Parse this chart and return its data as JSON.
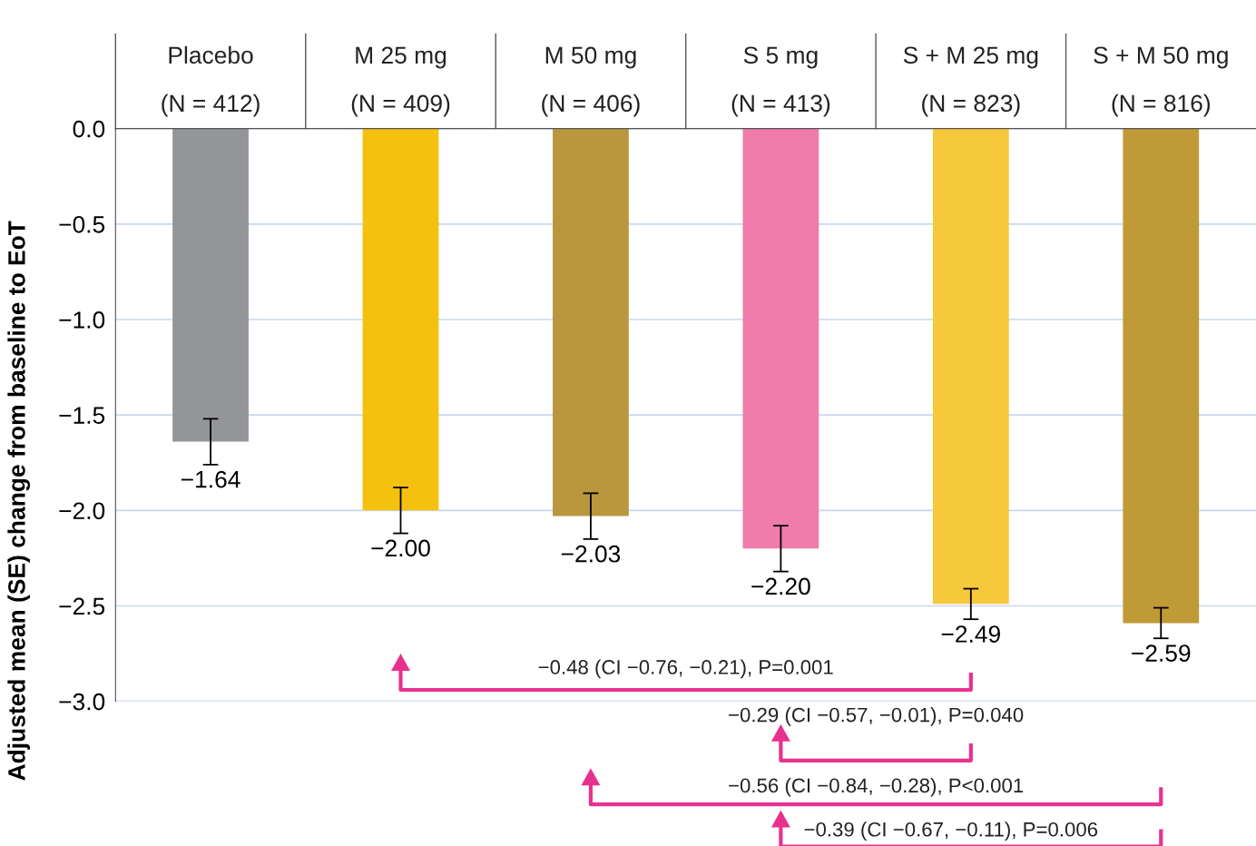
{
  "chart_data": {
    "type": "bar",
    "ylabel": "Adjusted mean (SE) change from baseline to EoT",
    "categories": [
      "Placebo\n\n(N = 412)",
      "M 25 mg\n\n(N = 409)",
      "M 50 mg\n\n(N = 406)",
      "S 5 mg\n\n(N = 413)",
      "S + M 25 mg\n\n(N = 823)",
      "S + M 50 mg\n\n(N = 816)"
    ],
    "values": [
      -1.64,
      -2.0,
      -2.03,
      -2.2,
      -2.49,
      -2.59
    ],
    "errors": [
      0.12,
      0.12,
      0.12,
      0.12,
      0.08,
      0.08
    ],
    "colors": [
      "#939598",
      "#f5c10f",
      "#b9973f",
      "#f07cab",
      "#f6c83c",
      "#bf9a37"
    ],
    "value_labels": [
      "−1.64",
      "−2.00",
      "−2.03",
      "−2.20",
      "−2.49",
      "−2.59"
    ],
    "ylim": [
      -3.0,
      0.0
    ],
    "yticks": [
      {
        "value": 0.0,
        "label": "0.0"
      },
      {
        "value": -0.5,
        "label": "−0.5"
      },
      {
        "value": -1.0,
        "label": "−1.0"
      },
      {
        "value": -1.5,
        "label": "−1.5"
      },
      {
        "value": -2.0,
        "label": "−2.0"
      },
      {
        "value": -2.5,
        "label": "−2.5"
      },
      {
        "value": -3.0,
        "label": "−3.0"
      }
    ],
    "grid": "y",
    "annotations": [
      "−0.48 (CI −0.76, −0.21), P=0.001",
      "−0.29 (CI −0.57, −0.01), P=0.040",
      "−0.56 (CI −0.84, −0.28), P<0.001",
      "−0.39 (CI −0.67, −0.11), P=0.006"
    ]
  }
}
